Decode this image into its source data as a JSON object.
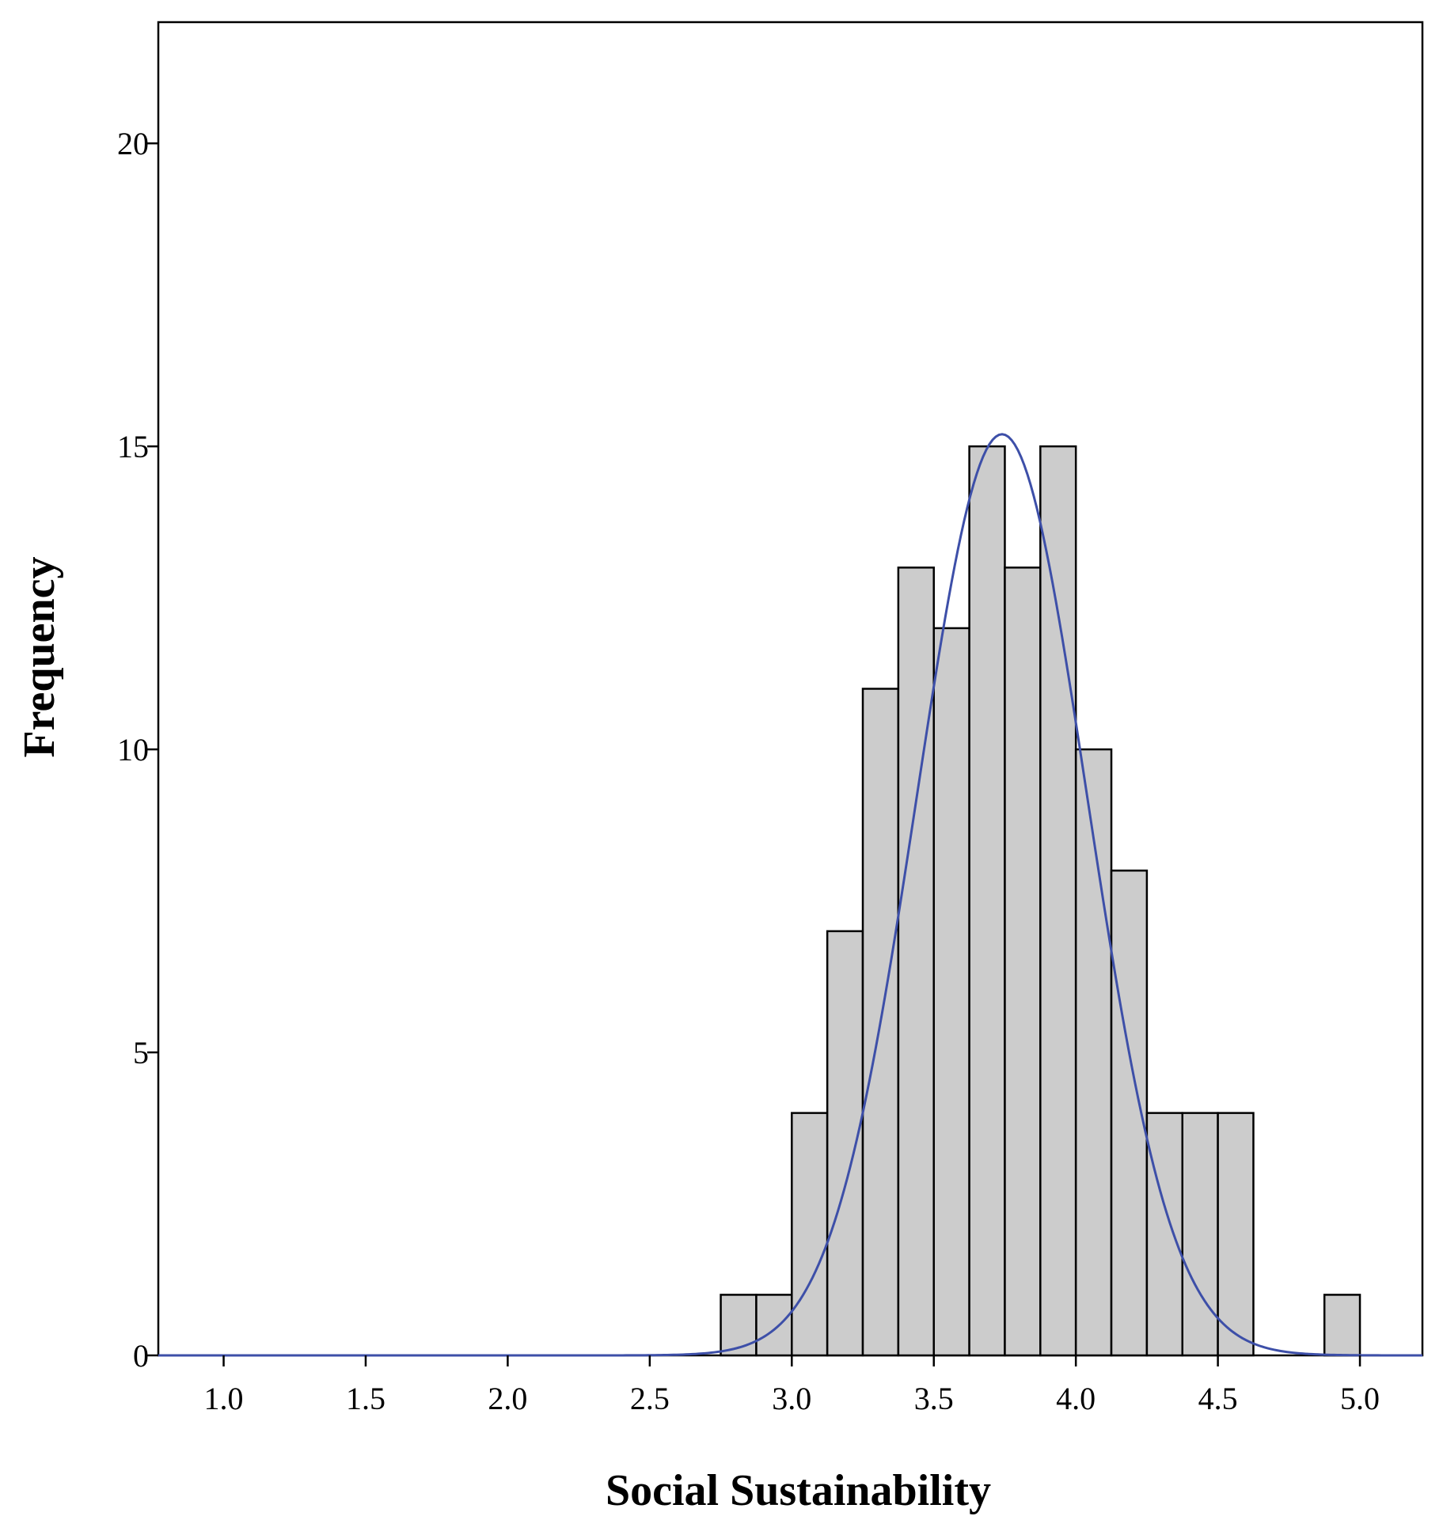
{
  "chart_data": {
    "type": "bar",
    "subtype": "histogram",
    "xlabel": "Social Sustainability",
    "ylabel": "Frequency",
    "xlim": [
      0.77,
      5.22
    ],
    "ylim": [
      0,
      22
    ],
    "x_ticks": [
      1.0,
      1.5,
      2.0,
      2.5,
      3.0,
      3.5,
      4.0,
      4.5,
      5.0
    ],
    "x_tick_labels": [
      "1.0",
      "1.5",
      "2.0",
      "2.5",
      "3.0",
      "3.5",
      "4.0",
      "4.5",
      "5.0"
    ],
    "y_ticks": [
      0,
      5,
      10,
      15,
      20
    ],
    "y_tick_labels": [
      "0",
      "5",
      "10",
      "15",
      "20"
    ],
    "bin_width": 0.125,
    "bins": [
      {
        "x0": 2.75,
        "x1": 2.875,
        "count": 1
      },
      {
        "x0": 2.875,
        "x1": 3.0,
        "count": 1
      },
      {
        "x0": 3.0,
        "x1": 3.125,
        "count": 4
      },
      {
        "x0": 3.125,
        "x1": 3.25,
        "count": 7
      },
      {
        "x0": 3.25,
        "x1": 3.375,
        "count": 11
      },
      {
        "x0": 3.375,
        "x1": 3.5,
        "count": 13
      },
      {
        "x0": 3.5,
        "x1": 3.625,
        "count": 12
      },
      {
        "x0": 3.625,
        "x1": 3.75,
        "count": 15
      },
      {
        "x0": 3.75,
        "x1": 3.875,
        "count": 13
      },
      {
        "x0": 3.875,
        "x1": 4.0,
        "count": 15
      },
      {
        "x0": 4.0,
        "x1": 4.125,
        "count": 10
      },
      {
        "x0": 4.125,
        "x1": 4.25,
        "count": 8
      },
      {
        "x0": 4.25,
        "x1": 4.375,
        "count": 4
      },
      {
        "x0": 4.375,
        "x1": 4.5,
        "count": 4
      },
      {
        "x0": 4.5,
        "x1": 4.625,
        "count": 4
      },
      {
        "x0": 4.875,
        "x1": 5.0,
        "count": 1
      }
    ],
    "normal_curve": {
      "mean": 3.74,
      "sd": 0.3,
      "peak": 15.2
    },
    "colors": {
      "bar_fill": "#cccccc",
      "bar_stroke": "#000000",
      "curve": "#3d4fa8"
    },
    "grid": false,
    "legend": "none"
  }
}
